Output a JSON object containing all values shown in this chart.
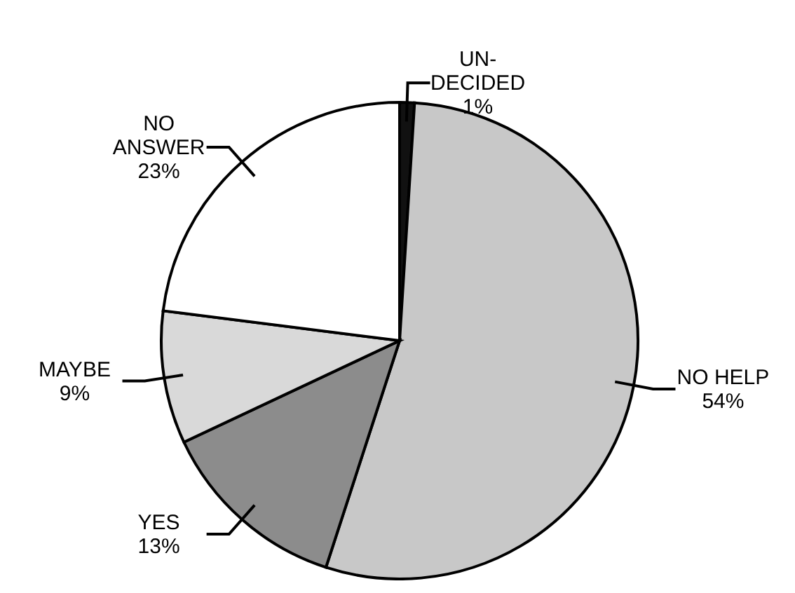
{
  "chart_data": {
    "type": "pie",
    "categories": [
      "UN-DECIDED",
      "NO HELP",
      "YES",
      "MAYBE",
      "NO ANSWER"
    ],
    "values": [
      1,
      54,
      13,
      9,
      23
    ],
    "colors": [
      "#111111",
      "#c8c8c8",
      "#8c8c8c",
      "#d9d9d9",
      "#ffffff"
    ],
    "value_labels": [
      "1%",
      "54%",
      "13%",
      "9%",
      "23%"
    ]
  }
}
